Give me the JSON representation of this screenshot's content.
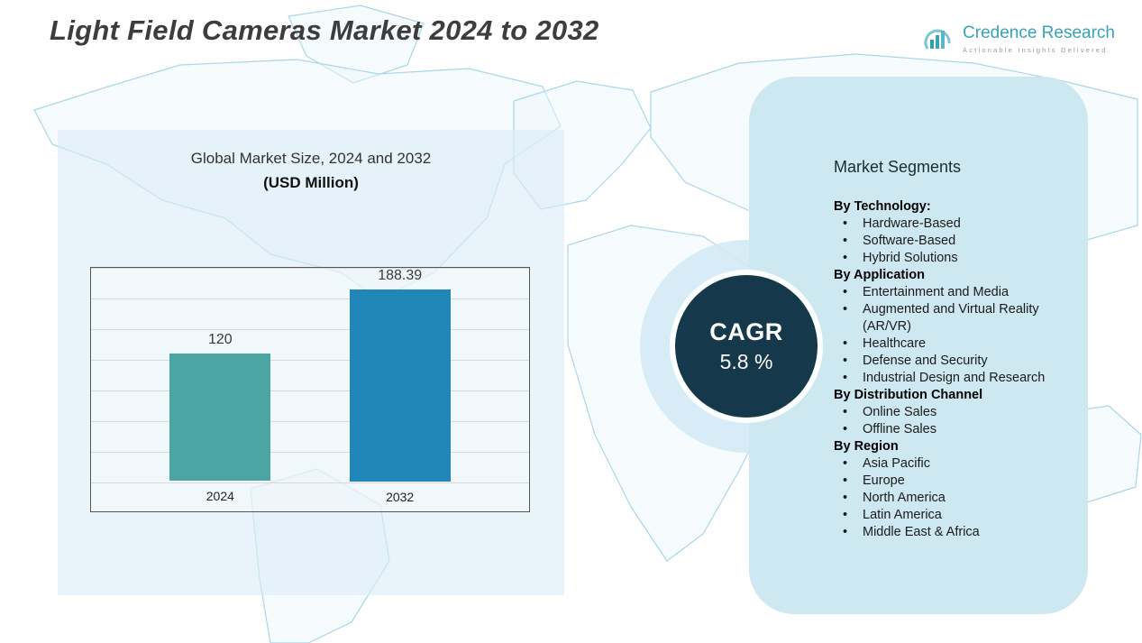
{
  "page": {
    "title": "Light Field Cameras Market 2024 to 2032"
  },
  "logo": {
    "name": "Credence Research",
    "tagline": "Actionable Insights Delivered",
    "icon": "bar-chart-logo-icon",
    "color": "#38a2b8"
  },
  "chart": {
    "title_line1": "Global Market Size, 2024 and 2032",
    "title_line2": "(USD Million)"
  },
  "chart_data": {
    "type": "bar",
    "title": "Global Market Size, 2024 and 2032 (USD Million)",
    "categories": [
      "2024",
      "2032"
    ],
    "values": [
      120,
      188.39
    ],
    "value_labels": [
      "120",
      "188.39"
    ],
    "series_colors": [
      "#4ba6a3",
      "#2187b8"
    ],
    "xlabel": "",
    "ylabel": "USD Million",
    "ylim": [
      0,
      200
    ],
    "grid": true,
    "legend": false
  },
  "cagr": {
    "label": "CAGR",
    "value": "5.8 %"
  },
  "segments": {
    "title": "Market Segments",
    "bullet": "•",
    "groups": [
      {
        "heading": "By Technology:",
        "items": [
          "Hardware-Based",
          "Software-Based",
          "Hybrid Solutions"
        ]
      },
      {
        "heading": "By Application",
        "items": [
          "Entertainment and Media",
          "Augmented and Virtual Reality (AR/VR)",
          "Healthcare",
          "Defense and Security",
          "Industrial Design and Research"
        ]
      },
      {
        "heading": "By Distribution Channel",
        "items": [
          "Online Sales",
          "Offline Sales"
        ]
      },
      {
        "heading": "By Region",
        "items": [
          "Asia Pacific",
          "Europe",
          "North America",
          "Latin America",
          "Middle East & Africa"
        ]
      }
    ]
  },
  "colors": {
    "segments_panel": "#cee8f2",
    "chart_panel": "#dcedf7",
    "cagr_circle": "#16384b",
    "map_line": "#a9d7e8",
    "bar_2024": "#4ba6a3",
    "bar_2032": "#2187b8"
  }
}
